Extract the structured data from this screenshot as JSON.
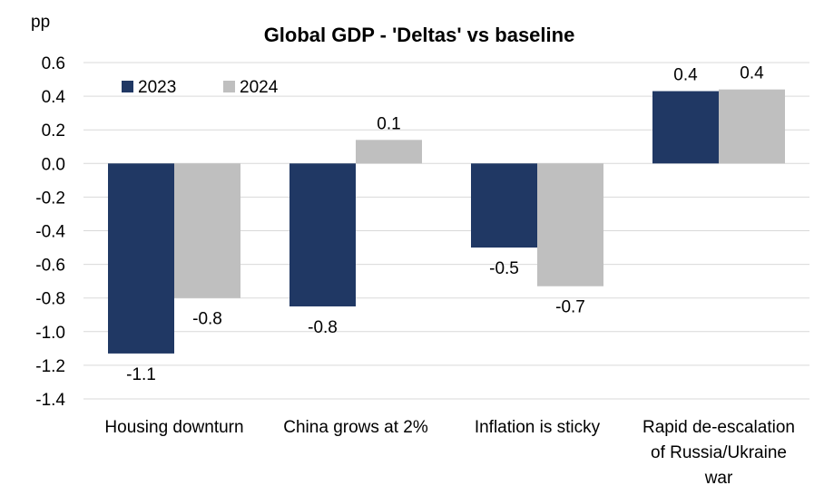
{
  "chart_data": {
    "type": "bar",
    "title": "Global GDP - 'Deltas' vs baseline",
    "ylabel": "pp",
    "xlabel": "",
    "ylim": [
      -1.4,
      0.6
    ],
    "yticks": [
      "0.6",
      "0.4",
      "0.2",
      "0.0",
      "-0.2",
      "-0.4",
      "-0.6",
      "-0.8",
      "-1.0",
      "-1.2",
      "-1.4"
    ],
    "ytick_values": [
      0.6,
      0.4,
      0.2,
      0.0,
      -0.2,
      -0.4,
      -0.6,
      -0.8,
      -1.0,
      -1.2,
      -1.4
    ],
    "grid": "horizontal",
    "legend_position": "top-left",
    "categories": [
      [
        "Housing downturn"
      ],
      [
        "China grows at 2%"
      ],
      [
        "Inflation is sticky"
      ],
      [
        "Rapid de-escalation",
        "of Russia/Ukraine",
        "war"
      ]
    ],
    "series": [
      {
        "name": "2023",
        "color": "#203864",
        "values": [
          -1.13,
          -0.85,
          -0.5,
          0.43
        ],
        "labels": [
          "-1.1",
          "-0.8",
          "-0.5",
          "0.4"
        ]
      },
      {
        "name": "2024",
        "color": "#bfbfbf",
        "values": [
          -0.8,
          0.14,
          -0.73,
          0.44
        ],
        "labels": [
          "-0.8",
          "0.1",
          "-0.7",
          "0.4"
        ]
      }
    ]
  }
}
